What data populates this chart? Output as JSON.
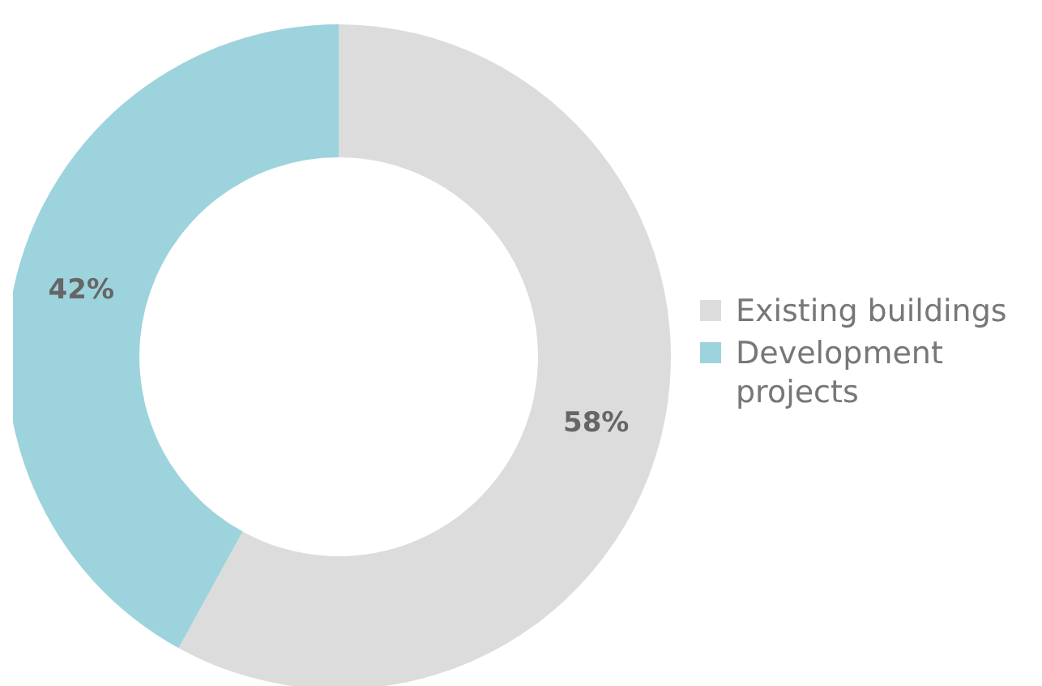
{
  "chart_data": {
    "type": "donut",
    "categories": [
      "Existing buildings",
      "Development projects"
    ],
    "values": [
      58,
      42
    ],
    "colors": [
      "#dcdcdc",
      "#9dd3dc"
    ],
    "value_labels": [
      "58%",
      "42%"
    ],
    "legend": "right"
  }
}
